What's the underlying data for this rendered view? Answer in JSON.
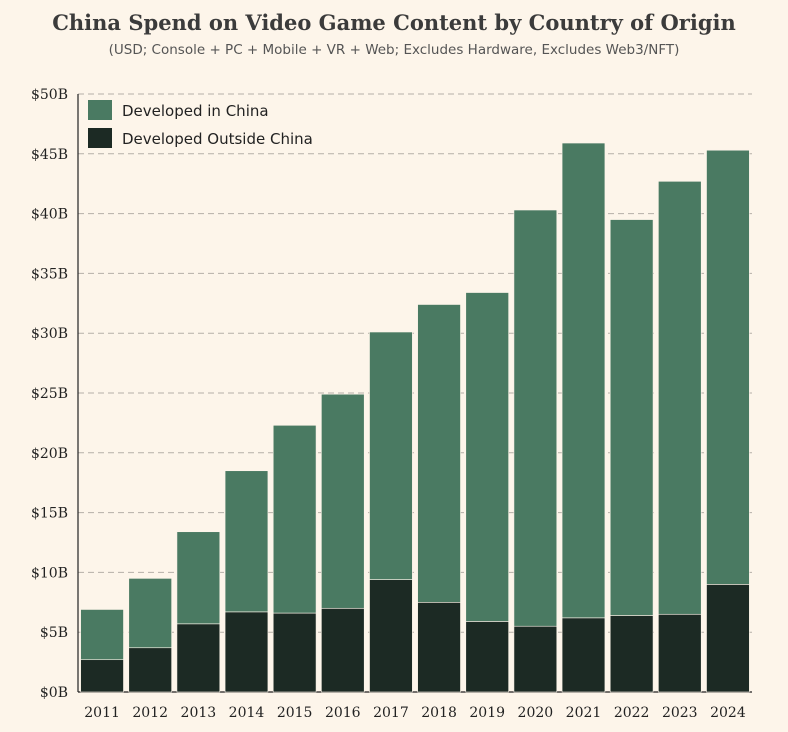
{
  "chart_data": {
    "type": "bar",
    "stacked": true,
    "title": "China Spend on Video Game Content by Country of Origin",
    "subtitle": "(USD; Console + PC + Mobile + VR + Web; Excludes Hardware, Excludes Web3/NFT)",
    "categories": [
      "2011",
      "2012",
      "2013",
      "2014",
      "2015",
      "2016",
      "2017",
      "2018",
      "2019",
      "2020",
      "2021",
      "2022",
      "2023",
      "2024"
    ],
    "series": [
      {
        "name": "Developed Outside China",
        "color": "#1c2a24",
        "values": [
          2.7,
          3.7,
          5.7,
          6.7,
          6.6,
          7.0,
          9.4,
          7.5,
          5.9,
          5.5,
          6.2,
          6.4,
          6.5,
          9.0
        ]
      },
      {
        "name": "Developed in China",
        "color": "#4a7a62",
        "values": [
          4.2,
          5.8,
          7.7,
          11.8,
          15.7,
          17.9,
          20.7,
          24.9,
          27.5,
          34.8,
          39.7,
          33.1,
          36.2,
          36.3
        ]
      }
    ],
    "ylim": [
      0,
      50
    ],
    "yticks": [
      0,
      5,
      10,
      15,
      20,
      25,
      30,
      35,
      40,
      45,
      50
    ],
    "ytick_labels": [
      "$0B",
      "$5B",
      "$10B",
      "$15B",
      "$20B",
      "$25B",
      "$30B",
      "$35B",
      "$40B",
      "$45B",
      "$50B"
    ],
    "xlabel": "",
    "ylabel": "",
    "grid": "horizontal dashed",
    "legend_position": "top-left"
  }
}
